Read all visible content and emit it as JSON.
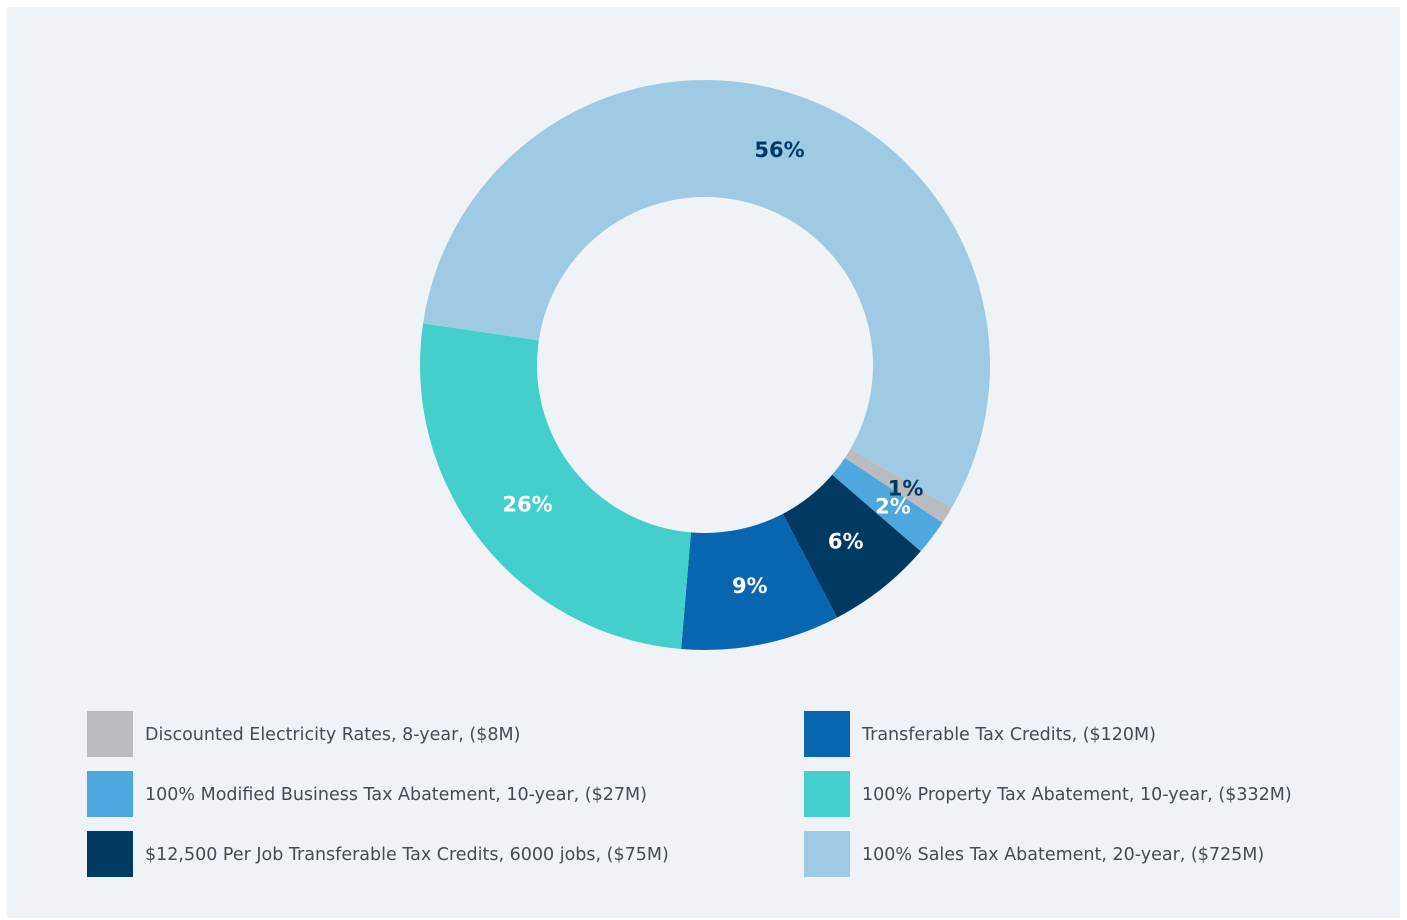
{
  "chart_data": {
    "type": "donut",
    "categories": [
      "Discounted Electricity Rates, 8-year, ($8M)",
      "100% Modified Business Tax Abatement, 10-year, ($27M)",
      "$12,500 Per Job Transferable Tax Credits, 6000 jobs, ($75M)",
      "Transferable Tax Credits, ($120M)",
      "100% Property Tax Abatement, 10-year, ($332M)",
      "100% Sales Tax Abatement, 20-year, ($725M)"
    ],
    "values": [
      1,
      2,
      6,
      9,
      26,
      56
    ],
    "value_labels": [
      "1%",
      "2%",
      "6%",
      "9%",
      "26%",
      "56%"
    ],
    "colors": [
      "#b9bbbe",
      "#4ea8de",
      "#003a63",
      "#0866b0",
      "#44cfcd",
      "#9ecbe3"
    ],
    "label_colors": [
      "#003a63",
      "#ffffff",
      "#ffffff",
      "#ffffff",
      "#ffffff",
      "#003a63"
    ]
  }
}
